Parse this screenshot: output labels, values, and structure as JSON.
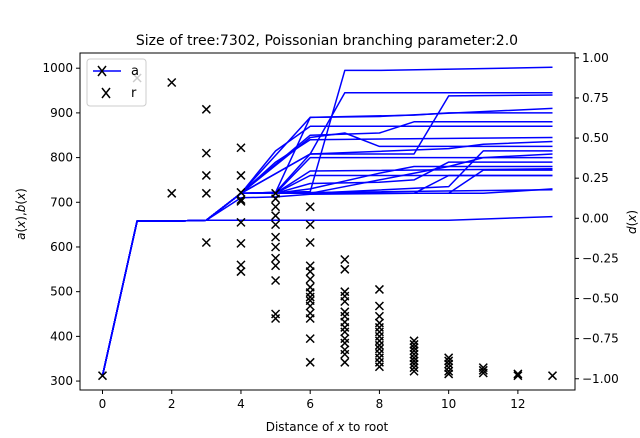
{
  "chart_data": {
    "type": "line",
    "title": "Size of tree:7302, Poissonian branching parameter:2.0",
    "xlabel": "Distance of x to root",
    "ylabel": "a(x),b(x)",
    "ylabel_right": "d(x)",
    "xlim": [
      -0.65,
      13.65
    ],
    "ylim": [
      280,
      1034
    ],
    "ylim_right": [
      -1.07,
      1.03
    ],
    "xticks": [
      0,
      2,
      4,
      6,
      8,
      10,
      12
    ],
    "yticks": [
      300,
      400,
      500,
      600,
      700,
      800,
      900,
      1000
    ],
    "yticks_right": [
      -1.0,
      -0.75,
      -0.5,
      -0.25,
      0.0,
      0.25,
      0.5,
      0.75,
      1.0
    ],
    "ytick_labels_right": [
      "−1.00",
      "−0.75",
      "−0.50",
      "−0.25",
      "0.00",
      "0.25",
      "0.50",
      "0.75",
      "1.00"
    ],
    "grid": false,
    "legend_position": "top-left",
    "legend": [
      "a",
      "r"
    ],
    "series": [
      {
        "name": "a",
        "color": "#0000ff",
        "style": "line",
        "paths": [
          [
            [
              0,
              312
            ],
            [
              1,
              658
            ],
            [
              2,
              658
            ],
            [
              3,
              660
            ],
            [
              4,
              720
            ],
            [
              5,
              722
            ],
            [
              6,
              724
            ],
            [
              7,
              995
            ],
            [
              8,
              995
            ],
            [
              13,
              1002
            ]
          ],
          [
            [
              0,
              312
            ],
            [
              1,
              658
            ],
            [
              2,
              658
            ],
            [
              3,
              660
            ],
            [
              4,
              720
            ],
            [
              5,
              722
            ],
            [
              6,
              808
            ],
            [
              7,
              945
            ],
            [
              13,
              945
            ]
          ],
          [
            [
              0,
              312
            ],
            [
              1,
              658
            ],
            [
              2,
              658
            ],
            [
              3,
              660
            ],
            [
              4,
              720
            ],
            [
              5,
              722
            ],
            [
              6,
              890
            ],
            [
              8,
              892
            ],
            [
              13,
              910
            ]
          ],
          [
            [
              0,
              312
            ],
            [
              1,
              658
            ],
            [
              2,
              658
            ],
            [
              3,
              660
            ],
            [
              4,
              720
            ],
            [
              5,
              815
            ],
            [
              6,
              870
            ],
            [
              13,
              870
            ]
          ],
          [
            [
              0,
              312
            ],
            [
              1,
              658
            ],
            [
              2,
              658
            ],
            [
              3,
              660
            ],
            [
              4,
              720
            ],
            [
              5,
              790
            ],
            [
              6,
              840
            ],
            [
              13,
              845
            ]
          ],
          [
            [
              0,
              312
            ],
            [
              1,
              658
            ],
            [
              2,
              658
            ],
            [
              3,
              660
            ],
            [
              4,
              720
            ],
            [
              5,
              720
            ],
            [
              6,
              800
            ],
            [
              13,
              800
            ]
          ],
          [
            [
              0,
              312
            ],
            [
              1,
              658
            ],
            [
              2,
              658
            ],
            [
              3,
              660
            ],
            [
              4,
              720
            ],
            [
              5,
              720
            ],
            [
              6,
              770
            ],
            [
              13,
              775
            ]
          ],
          [
            [
              0,
              312
            ],
            [
              1,
              658
            ],
            [
              2,
              658
            ],
            [
              3,
              660
            ],
            [
              4,
              720
            ],
            [
              5,
              720
            ],
            [
              6,
              760
            ],
            [
              13,
              760
            ]
          ],
          [
            [
              0,
              312
            ],
            [
              1,
              658
            ],
            [
              2,
              658
            ],
            [
              3,
              660
            ],
            [
              4,
              720
            ],
            [
              13,
              728
            ]
          ],
          [
            [
              0,
              312
            ],
            [
              1,
              658
            ],
            [
              2,
              658
            ],
            [
              3,
              660
            ],
            [
              10,
              660
            ],
            [
              13,
              668
            ]
          ],
          [
            [
              0,
              312
            ],
            [
              1,
              658
            ],
            [
              2,
              658
            ],
            [
              3,
              660
            ],
            [
              4,
              710
            ],
            [
              5,
              712
            ],
            [
              6,
              718
            ],
            [
              9,
              720
            ],
            [
              10,
              760
            ],
            [
              13,
              760
            ]
          ],
          [
            [
              0,
              312
            ],
            [
              1,
              658
            ],
            [
              2,
              658
            ],
            [
              3,
              660
            ],
            [
              4,
              720
            ],
            [
              5,
              720
            ],
            [
              6,
              730
            ],
            [
              8,
              765
            ],
            [
              9,
              780
            ],
            [
              13,
              780
            ]
          ],
          [
            [
              0,
              312
            ],
            [
              1,
              658
            ],
            [
              2,
              658
            ],
            [
              3,
              660
            ],
            [
              4,
              720
            ],
            [
              5,
              720
            ],
            [
              6,
              742
            ],
            [
              8,
              745
            ],
            [
              9,
              750
            ],
            [
              10,
              790
            ],
            [
              13,
              790
            ]
          ],
          [
            [
              0,
              312
            ],
            [
              1,
              658
            ],
            [
              2,
              658
            ],
            [
              3,
              660
            ],
            [
              4,
              720
            ],
            [
              5,
              720
            ],
            [
              6,
              720
            ],
            [
              10,
              780
            ],
            [
              11,
              800
            ],
            [
              13,
              808
            ]
          ],
          [
            [
              0,
              312
            ],
            [
              1,
              658
            ],
            [
              2,
              658
            ],
            [
              3,
              660
            ],
            [
              4,
              720
            ],
            [
              5,
              720
            ],
            [
              6,
              720
            ],
            [
              10,
              720
            ],
            [
              11,
              772
            ],
            [
              13,
              772
            ]
          ],
          [
            [
              0,
              312
            ],
            [
              1,
              658
            ],
            [
              2,
              658
            ],
            [
              3,
              660
            ],
            [
              4,
              720
            ],
            [
              6,
              808
            ],
            [
              9,
              808
            ],
            [
              10,
              938
            ],
            [
              13,
              940
            ]
          ],
          [
            [
              0,
              312
            ],
            [
              1,
              658
            ],
            [
              2,
              658
            ],
            [
              3,
              660
            ],
            [
              4,
              720
            ],
            [
              6,
              808
            ],
            [
              10,
              820
            ],
            [
              11,
              830
            ],
            [
              13,
              836
            ]
          ],
          [
            [
              0,
              312
            ],
            [
              1,
              658
            ],
            [
              2,
              658
            ],
            [
              3,
              660
            ],
            [
              4,
              720
            ],
            [
              6,
              890
            ],
            [
              9,
              895
            ],
            [
              10,
              900
            ],
            [
              13,
              900
            ]
          ],
          [
            [
              0,
              312
            ],
            [
              1,
              658
            ],
            [
              2,
              658
            ],
            [
              3,
              660
            ],
            [
              4,
              720
            ],
            [
              6,
              850
            ],
            [
              8,
              855
            ],
            [
              9,
              880
            ],
            [
              13,
              880
            ]
          ],
          [
            [
              0,
              312
            ],
            [
              1,
              658
            ],
            [
              2,
              658
            ],
            [
              3,
              660
            ],
            [
              4,
              720
            ],
            [
              6,
              845
            ],
            [
              7,
              855
            ],
            [
              8,
              825
            ],
            [
              13,
              825
            ]
          ],
          [
            [
              0,
              312
            ],
            [
              1,
              658
            ],
            [
              2,
              658
            ],
            [
              3,
              660
            ],
            [
              4,
              720
            ],
            [
              5,
              720
            ],
            [
              6,
              720
            ],
            [
              10,
              735
            ],
            [
              11,
              815
            ],
            [
              13,
              815
            ]
          ],
          [
            [
              0,
              312
            ],
            [
              1,
              658
            ],
            [
              2,
              658
            ],
            [
              3,
              660
            ],
            [
              4,
              720
            ],
            [
              5,
              720
            ],
            [
              6,
              720
            ],
            [
              11,
              720
            ],
            [
              12,
              725
            ],
            [
              13,
              730
            ]
          ]
        ]
      },
      {
        "name": "r",
        "color": "#000000",
        "style": "x-marker",
        "points": [
          [
            0,
            312
          ],
          [
            1,
            978
          ],
          [
            2,
            968
          ],
          [
            2,
            720
          ],
          [
            3,
            908
          ],
          [
            3,
            810
          ],
          [
            3,
            760
          ],
          [
            3,
            720
          ],
          [
            3,
            610
          ],
          [
            4,
            822
          ],
          [
            4,
            760
          ],
          [
            4,
            722
          ],
          [
            4,
            706
          ],
          [
            4,
            702
          ],
          [
            4,
            655
          ],
          [
            4,
            608
          ],
          [
            4,
            560
          ],
          [
            4,
            545
          ],
          [
            5,
            720
          ],
          [
            5,
            708
          ],
          [
            5,
            690
          ],
          [
            5,
            670
          ],
          [
            5,
            650
          ],
          [
            5,
            622
          ],
          [
            5,
            600
          ],
          [
            5,
            575
          ],
          [
            5,
            558
          ],
          [
            5,
            525
          ],
          [
            5,
            450
          ],
          [
            5,
            440
          ],
          [
            6,
            690
          ],
          [
            6,
            650
          ],
          [
            6,
            610
          ],
          [
            6,
            558
          ],
          [
            6,
            545
          ],
          [
            6,
            528
          ],
          [
            6,
            510
          ],
          [
            6,
            498
          ],
          [
            6,
            488
          ],
          [
            6,
            480
          ],
          [
            6,
            468
          ],
          [
            6,
            452
          ],
          [
            6,
            440
          ],
          [
            6,
            395
          ],
          [
            6,
            342
          ],
          [
            7,
            572
          ],
          [
            7,
            550
          ],
          [
            7,
            500
          ],
          [
            7,
            490
          ],
          [
            7,
            478
          ],
          [
            7,
            455
          ],
          [
            7,
            445
          ],
          [
            7,
            432
          ],
          [
            7,
            420
          ],
          [
            7,
            410
          ],
          [
            7,
            395
          ],
          [
            7,
            385
          ],
          [
            7,
            370
          ],
          [
            7,
            360
          ],
          [
            7,
            342
          ],
          [
            8,
            505
          ],
          [
            8,
            468
          ],
          [
            8,
            445
          ],
          [
            8,
            430
          ],
          [
            8,
            420
          ],
          [
            8,
            410
          ],
          [
            8,
            400
          ],
          [
            8,
            390
          ],
          [
            8,
            380
          ],
          [
            8,
            372
          ],
          [
            8,
            362
          ],
          [
            8,
            352
          ],
          [
            8,
            342
          ],
          [
            8,
            332
          ],
          [
            9,
            390
          ],
          [
            9,
            382
          ],
          [
            9,
            375
          ],
          [
            9,
            368
          ],
          [
            9,
            360
          ],
          [
            9,
            352
          ],
          [
            9,
            345
          ],
          [
            9,
            338
          ],
          [
            9,
            330
          ],
          [
            9,
            322
          ],
          [
            10,
            352
          ],
          [
            10,
            345
          ],
          [
            10,
            338
          ],
          [
            10,
            330
          ],
          [
            10,
            322
          ],
          [
            10,
            316
          ],
          [
            11,
            330
          ],
          [
            11,
            324
          ],
          [
            11,
            318
          ],
          [
            12,
            316
          ],
          [
            12,
            312
          ],
          [
            13,
            312
          ]
        ]
      }
    ]
  }
}
